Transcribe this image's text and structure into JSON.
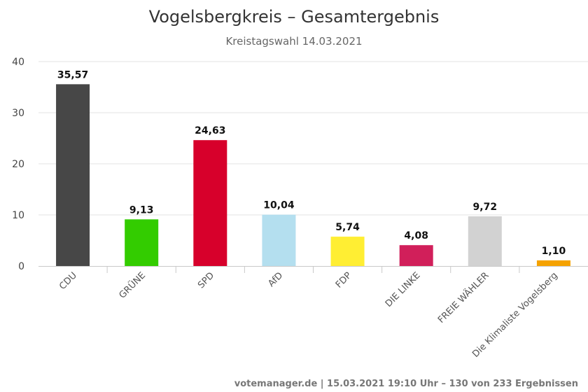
{
  "chart_data": {
    "type": "bar",
    "title": "Vogelsbergkreis – Gesamtergebnis",
    "subtitle": "Kreistagswahl 14.03.2021",
    "xlabel": "",
    "ylabel": "",
    "ylim": [
      0,
      40
    ],
    "yticks": [
      0,
      10,
      20,
      30,
      40
    ],
    "grid": true,
    "legend": "none",
    "categories": [
      "CDU",
      "GRÜNE",
      "SPD",
      "AfD",
      "FDP",
      "DIE LINKE",
      "FREIE WÄHLER",
      "Die Klimaliste Vogelsberg"
    ],
    "values": [
      35.57,
      9.13,
      24.63,
      10.04,
      5.74,
      4.08,
      9.72,
      1.1
    ],
    "value_labels": [
      "35,57",
      "9,13",
      "24,63",
      "10,04",
      "5,74",
      "4,08",
      "9,72",
      "1,10"
    ],
    "colors": [
      "#474747",
      "#33cc00",
      "#d7002b",
      "#b4dfef",
      "#ffee33",
      "#d11f5a",
      "#d2d2d2",
      "#f5a200"
    ]
  },
  "footer": "votemanager.de | 15.03.2021 19:10 Uhr – 130 von 233 Ergebnissen"
}
